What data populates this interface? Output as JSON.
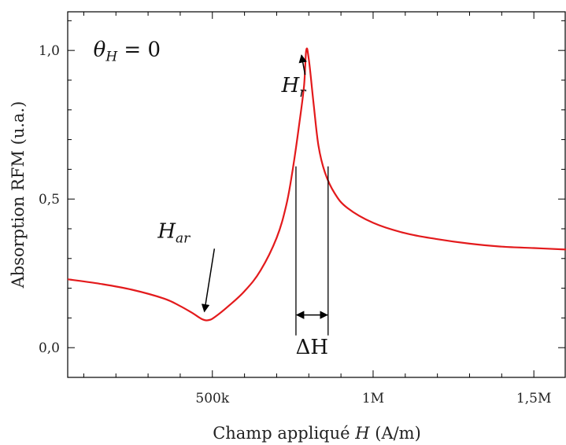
{
  "chart_data": {
    "type": "line",
    "xlabel": "Champ appliqué H (A/m)",
    "xlabel_parts": {
      "pre": "Champ appliqué ",
      "var": "H",
      "post": " (A/m)"
    },
    "ylabel": "Absorption RFM (u.a.)",
    "xlim": [
      50000,
      1600000
    ],
    "ylim": [
      -0.1,
      1.13
    ],
    "x_ticks": [
      {
        "value": 500000,
        "label": "500k"
      },
      {
        "value": 1000000,
        "label": "1M"
      },
      {
        "value": 1500000,
        "label": "1,5M"
      }
    ],
    "y_ticks": [
      {
        "value": 0.0,
        "label": "0,0"
      },
      {
        "value": 0.5,
        "label": "0,5"
      },
      {
        "value": 1.0,
        "label": "1,0"
      }
    ],
    "grid": false,
    "series": [
      {
        "color": "#e31a1c",
        "x": [
          50000,
          150000,
          250000,
          350000,
          400000,
          440000,
          470000,
          490000,
          510000,
          550000,
          600000,
          650000,
          700000,
          730000,
          750000,
          770000,
          785000,
          792000,
          800000,
          815000,
          830000,
          850000,
          880000,
          920000,
          1000000,
          1100000,
          1200000,
          1300000,
          1400000,
          1500000,
          1600000
        ],
        "y": [
          0.23,
          0.215,
          0.195,
          0.165,
          0.14,
          0.115,
          0.095,
          0.093,
          0.105,
          0.14,
          0.19,
          0.26,
          0.37,
          0.48,
          0.6,
          0.75,
          0.88,
          1.0,
          0.97,
          0.82,
          0.68,
          0.59,
          0.52,
          0.47,
          0.42,
          0.385,
          0.365,
          0.35,
          0.34,
          0.335,
          0.33
        ]
      }
    ],
    "annotations": [
      {
        "text": "θ",
        "sub": "H",
        "suffix": " = 0",
        "x": 130000,
        "y": 0.98
      },
      {
        "text": "H",
        "sub": "r",
        "x": 715000,
        "y": 0.86,
        "arrow_to": [
          792000,
          1.0
        ]
      },
      {
        "text": "H",
        "sub": "ar",
        "x": 330000,
        "y": 0.37,
        "arrow_to": [
          480000,
          0.1
        ]
      },
      {
        "text": "ΔH",
        "x": 810000,
        "y": -0.02,
        "bracket": [
          760000,
          860000
        ],
        "bracket_y": 0.11
      }
    ]
  }
}
